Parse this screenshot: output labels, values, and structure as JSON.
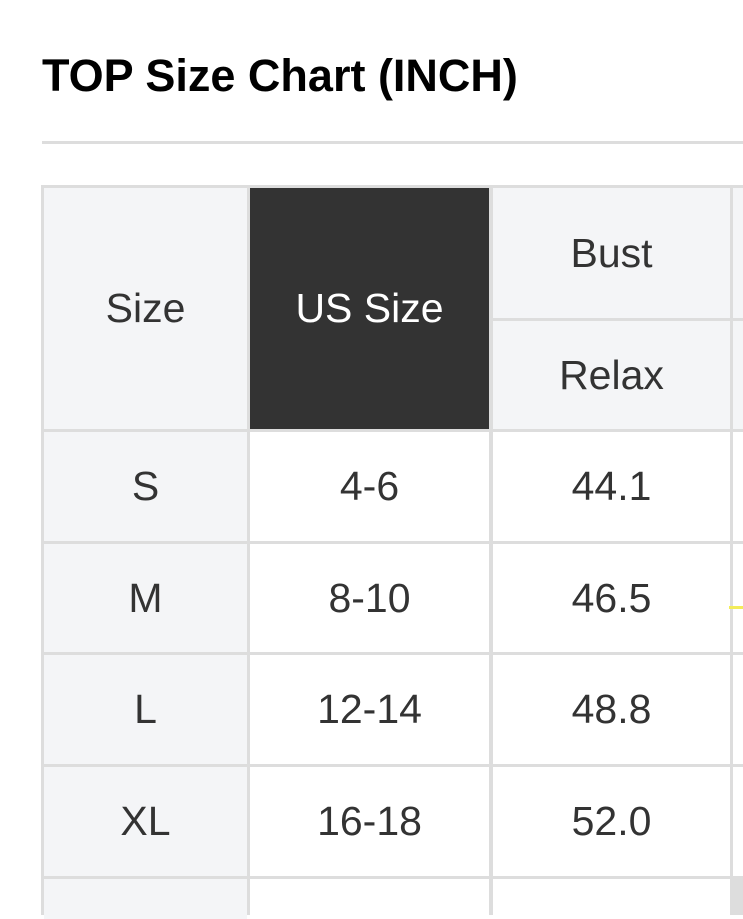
{
  "title": "TOP Size Chart (INCH)",
  "table": {
    "headers": {
      "size": "Size",
      "us_size": "US Size",
      "bust": "Bust",
      "bust_sub": "Relax"
    },
    "rows": [
      {
        "size": "S",
        "us": "4-6",
        "bust": "44.1"
      },
      {
        "size": "M",
        "us": "8-10",
        "bust": "46.5"
      },
      {
        "size": "L",
        "us": "12-14",
        "bust": "48.8"
      },
      {
        "size": "XL",
        "us": "16-18",
        "bust": "52.0"
      }
    ]
  },
  "colors": {
    "header_dark": "#333333",
    "header_light": "#f4f5f7",
    "border": "#dddddd",
    "highlight_mark": "#f3ec5a"
  }
}
